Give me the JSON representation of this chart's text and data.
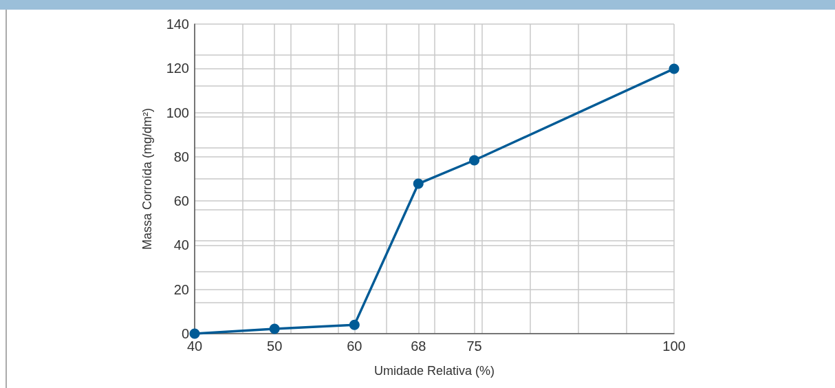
{
  "chart_data": {
    "type": "line",
    "xlabel": "Umidade Relativa (%)",
    "ylabel": "Massa Corroída (mg/dm²)",
    "x": [
      40,
      50,
      60,
      68,
      75,
      100
    ],
    "series": [
      {
        "color": "#005b96",
        "values": [
          0,
          2.2,
          4,
          67.8,
          78.4,
          119.8
        ]
      }
    ],
    "xlim": [
      40,
      100
    ],
    "xticks": [
      40,
      {
        "value": 46,
        "label": null
      },
      50,
      {
        "value": 52,
        "label": null
      },
      {
        "value": 58,
        "label": null
      },
      60,
      {
        "value": 64,
        "label": null
      },
      68,
      {
        "value": 70,
        "label": null
      },
      75,
      {
        "value": 76,
        "label": null
      },
      {
        "value": 82,
        "label": null
      },
      {
        "value": 88,
        "label": null
      },
      {
        "value": 94,
        "label": null
      },
      100
    ],
    "ylim": [
      0,
      140
    ],
    "yticks": [
      0,
      {
        "value": 14,
        "label": null
      },
      20,
      {
        "value": 28,
        "label": null
      },
      40,
      {
        "value": 42,
        "label": null
      },
      {
        "value": 56,
        "label": null
      },
      60,
      {
        "value": 70,
        "label": null
      },
      80,
      {
        "value": 84,
        "label": null
      },
      {
        "value": 98,
        "label": null
      },
      100,
      {
        "value": 112,
        "label": null
      },
      120,
      {
        "value": 126,
        "label": null
      },
      140
    ],
    "grid": true,
    "marker": "circle",
    "line_style": "solid"
  }
}
